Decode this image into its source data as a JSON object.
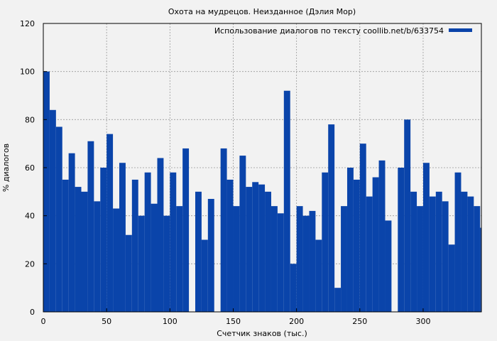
{
  "chart_data": {
    "type": "bar",
    "title": "Охота на мудрецов. Неизданное (Дэлия Мор)",
    "xlabel": "Счетчик знаков (тыс.)",
    "ylabel": "% диалогов",
    "xlim": [
      0,
      346
    ],
    "ylim": [
      0,
      120
    ],
    "x_ticks": [
      0,
      50,
      100,
      150,
      200,
      250,
      300
    ],
    "y_ticks": [
      0,
      20,
      40,
      60,
      80,
      100,
      120
    ],
    "grid": true,
    "legend_position": "top-right",
    "series": [
      {
        "name": "Использование диалогов по тексту coollib.net/b/633754",
        "color": "#0a44aa",
        "x": [
          0,
          5,
          10,
          15,
          20,
          25,
          30,
          35,
          40,
          45,
          50,
          55,
          60,
          65,
          70,
          75,
          80,
          85,
          90,
          95,
          100,
          105,
          110,
          115,
          120,
          125,
          130,
          135,
          140,
          145,
          150,
          155,
          160,
          165,
          170,
          175,
          180,
          185,
          190,
          195,
          200,
          205,
          210,
          215,
          220,
          225,
          230,
          235,
          240,
          245,
          250,
          255,
          260,
          265,
          270,
          275,
          280,
          285,
          290,
          295,
          300,
          305,
          310,
          315,
          320,
          325,
          330,
          335,
          340,
          345
        ],
        "values": [
          100,
          84,
          77,
          55,
          66,
          52,
          50,
          71,
          46,
          60,
          74,
          43,
          62,
          32,
          55,
          40,
          58,
          45,
          64,
          40,
          58,
          44,
          68,
          0,
          50,
          30,
          47,
          0,
          68,
          55,
          44,
          65,
          52,
          54,
          53,
          50,
          44,
          41,
          92,
          20,
          44,
          40,
          42,
          30,
          58,
          78,
          10,
          44,
          60,
          55,
          70,
          48,
          56,
          63,
          38,
          0,
          60,
          80,
          50,
          44,
          62,
          48,
          50,
          46,
          28,
          58,
          50,
          48,
          44,
          35
        ]
      }
    ]
  }
}
